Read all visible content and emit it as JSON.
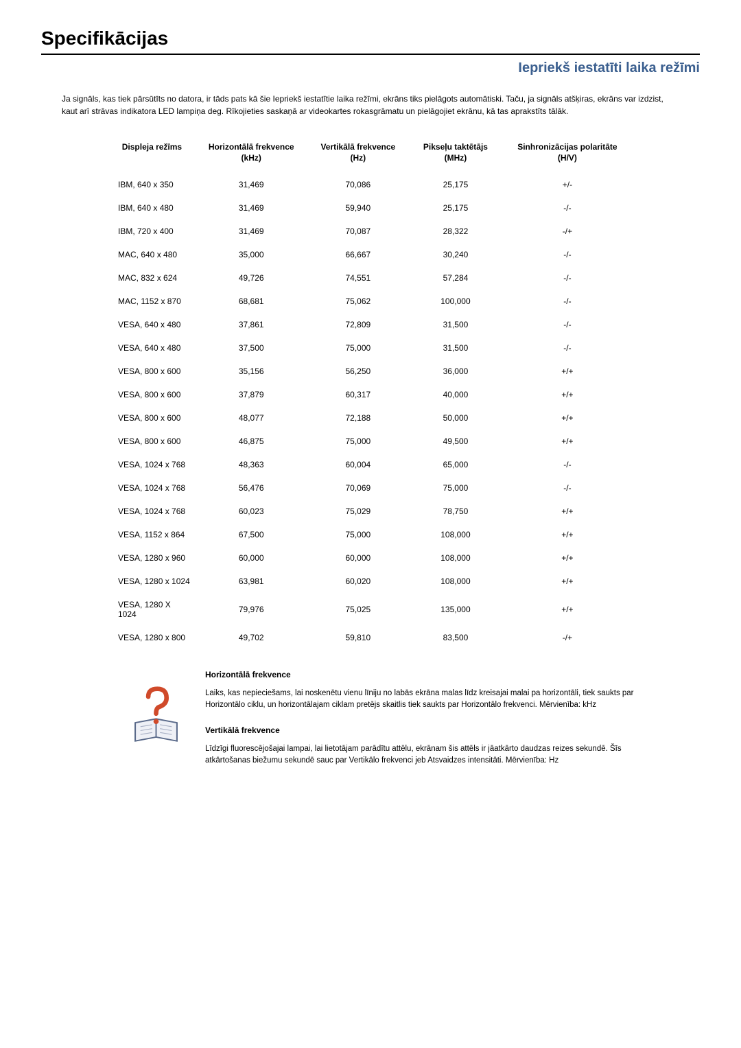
{
  "title": "Specifikācijas",
  "subtitle": "Iepriekš iestatīti laika režīmi",
  "intro": "Ja signāls, kas tiek pārsūtīts no datora, ir tāds pats kā šie Iepriekš iestatītie laika režīmi, ekrāns tiks pielāgots automātiski. Taču, ja signāls atšķiras, ekrāns var izdzist, kaut arī strāvas indikatora LED lampiņa deg. Rīkojieties saskaņā ar videokartes rokasgrāmatu un pielāgojiet ekrānu, kā tas aprakstīts tālāk.",
  "table": {
    "headers": [
      "Displeja režīms",
      "Horizontālā frekvence (kHz)",
      "Vertikālā frekvence (Hz)",
      "Pikseļu taktētājs (MHz)",
      "Sinhronizācijas polaritāte (H/V)"
    ],
    "rows": [
      [
        "IBM, 640 x 350",
        "31,469",
        "70,086",
        "25,175",
        "+/-"
      ],
      [
        "IBM, 640 x 480",
        "31,469",
        "59,940",
        "25,175",
        "-/-"
      ],
      [
        "IBM, 720 x 400",
        "31,469",
        "70,087",
        "28,322",
        "-/+"
      ],
      [
        "MAC, 640 x 480",
        "35,000",
        "66,667",
        "30,240",
        "-/-"
      ],
      [
        "MAC, 832 x 624",
        "49,726",
        "74,551",
        "57,284",
        "-/-"
      ],
      [
        "MAC, 1152 x 870",
        "68,681",
        "75,062",
        "100,000",
        "-/-"
      ],
      [
        "VESA, 640 x 480",
        "37,861",
        "72,809",
        "31,500",
        "-/-"
      ],
      [
        "VESA, 640 x 480",
        "37,500",
        "75,000",
        "31,500",
        "-/-"
      ],
      [
        "VESA, 800 x 600",
        "35,156",
        "56,250",
        "36,000",
        "+/+"
      ],
      [
        "VESA, 800 x 600",
        "37,879",
        "60,317",
        "40,000",
        "+/+"
      ],
      [
        "VESA, 800 x 600",
        "48,077",
        "72,188",
        "50,000",
        "+/+"
      ],
      [
        "VESA, 800 x 600",
        "46,875",
        "75,000",
        "49,500",
        "+/+"
      ],
      [
        "VESA, 1024 x 768",
        "48,363",
        "60,004",
        "65,000",
        "-/-"
      ],
      [
        "VESA, 1024 x 768",
        "56,476",
        "70,069",
        "75,000",
        "-/-"
      ],
      [
        "VESA, 1024 x 768",
        "60,023",
        "75,029",
        "78,750",
        "+/+"
      ],
      [
        "VESA, 1152 x 864",
        "67,500",
        "75,000",
        "108,000",
        "+/+"
      ],
      [
        "VESA, 1280 x 960",
        "60,000",
        "60,000",
        "108,000",
        "+/+"
      ],
      [
        "VESA, 1280 x 1024",
        "63,981",
        "60,020",
        "108,000",
        "+/+"
      ],
      [
        "VESA, 1280 X 1024",
        "79,976",
        "75,025",
        "135,000",
        "+/+"
      ],
      [
        "VESA, 1280 x 800",
        "49,702",
        "59,810",
        "83,500",
        "-/+"
      ]
    ]
  },
  "explain": {
    "horiz_title": "Horizontālā frekvence",
    "horiz_text": "Laiks, kas nepieciešams, lai noskenētu vienu līniju no labās ekrāna malas līdz kreisajai malai pa horizontāli, tiek saukts par Horizontālo ciklu, un horizontālajam ciklam pretējs skaitlis tiek saukts par Horizontālo frekvenci. Mērvienība: kHz",
    "vert_title": "Vertikālā frekvence",
    "vert_text": "Līdzīgi fluorescējošajai lampai, lai lietotājam parādītu attēlu, ekrānam šis attēls ir jāatkārto daudzas reizes sekundē. Šīs atkārtošanas biežumu sekundē sauc par Vertikālo frekvenci jeb Atsvaidzes intensitāti. Mērvienība: Hz"
  },
  "colors": {
    "subtitle": "#3b5f8f",
    "text": "#000000",
    "background": "#ffffff",
    "icon_question": "#d04a2a",
    "icon_book": "#5a6a8a"
  }
}
